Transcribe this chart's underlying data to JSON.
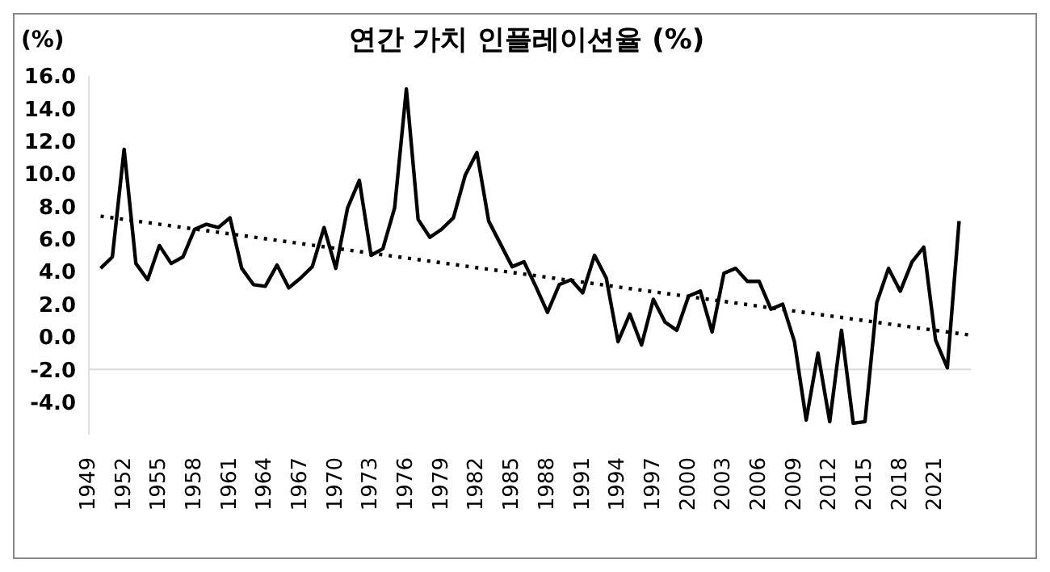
{
  "chart_data": {
    "type": "line",
    "title": "연간 가치 인플레이션율 (%)",
    "ylabel": "(%)",
    "x": [
      1950,
      1951,
      1952,
      1953,
      1954,
      1955,
      1956,
      1957,
      1958,
      1959,
      1960,
      1961,
      1962,
      1963,
      1964,
      1965,
      1966,
      1967,
      1968,
      1969,
      1970,
      1971,
      1972,
      1973,
      1974,
      1975,
      1976,
      1977,
      1978,
      1979,
      1980,
      1981,
      1982,
      1983,
      1984,
      1985,
      1986,
      1987,
      1988,
      1989,
      1990,
      1991,
      1992,
      1993,
      1994,
      1995,
      1996,
      1997,
      1998,
      1999,
      2000,
      2001,
      2002,
      2003,
      2004,
      2005,
      2006,
      2007,
      2008,
      2009,
      2010,
      2011,
      2012,
      2013,
      2014,
      2015,
      2016,
      2017,
      2018,
      2019,
      2020,
      2021,
      2022,
      2023
    ],
    "series": [
      {
        "color": "#000000",
        "values": [
          4.2,
          4.9,
          11.5,
          4.5,
          3.5,
          5.6,
          4.5,
          4.9,
          6.6,
          6.9,
          6.7,
          7.3,
          4.2,
          3.2,
          3.1,
          4.4,
          3.0,
          3.6,
          4.3,
          6.7,
          4.2,
          7.9,
          9.6,
          5.0,
          5.4,
          7.9,
          15.2,
          7.2,
          6.1,
          6.6,
          7.3,
          9.9,
          11.3,
          7.1,
          5.7,
          4.3,
          4.6,
          3.1,
          1.5,
          3.2,
          3.5,
          2.7,
          5.0,
          3.6,
          -0.3,
          1.4,
          -0.5,
          2.3,
          0.9,
          0.4,
          2.5,
          2.8,
          0.3,
          3.9,
          4.2,
          3.4,
          3.4,
          1.7,
          2.0,
          -0.3,
          -5.1,
          -1.0,
          -5.2,
          0.4,
          -5.3,
          -5.2,
          2.1,
          4.2,
          2.8,
          4.6,
          5.5,
          -0.2,
          -1.9,
          7.1
        ]
      },
      {
        "type": "line",
        "color": "#000000",
        "line_style": "dotted",
        "x": [
          1950,
          2024
        ],
        "values": [
          7.4,
          0.1
        ]
      }
    ],
    "xlim": [
      1949,
      2024
    ],
    "xticks": [
      1949,
      1952,
      1955,
      1958,
      1961,
      1964,
      1967,
      1970,
      1973,
      1976,
      1979,
      1982,
      1985,
      1988,
      1991,
      1994,
      1997,
      2000,
      2003,
      2006,
      2009,
      2012,
      2015,
      2018,
      2021
    ],
    "ylim": [
      -6,
      16
    ],
    "yticks": [
      {
        "value": -4,
        "label": "-4.0"
      },
      {
        "value": -2,
        "label": "-2.0"
      },
      {
        "value": 0,
        "label": "0.0"
      },
      {
        "value": 2,
        "label": "2.0"
      },
      {
        "value": 4,
        "label": "4.0"
      },
      {
        "value": 6,
        "label": "6.0"
      },
      {
        "value": 8,
        "label": "8.0"
      },
      {
        "value": 10,
        "label": "10.0"
      },
      {
        "value": 12,
        "label": "12.0"
      },
      {
        "value": 14,
        "label": "14.0"
      },
      {
        "value": 16,
        "label": "16.0"
      }
    ],
    "ref_lines": [
      {
        "axis": "y",
        "value": -2,
        "color": "#d9d9d9"
      }
    ],
    "marker": "none",
    "line_style": "solid",
    "legend": false
  }
}
